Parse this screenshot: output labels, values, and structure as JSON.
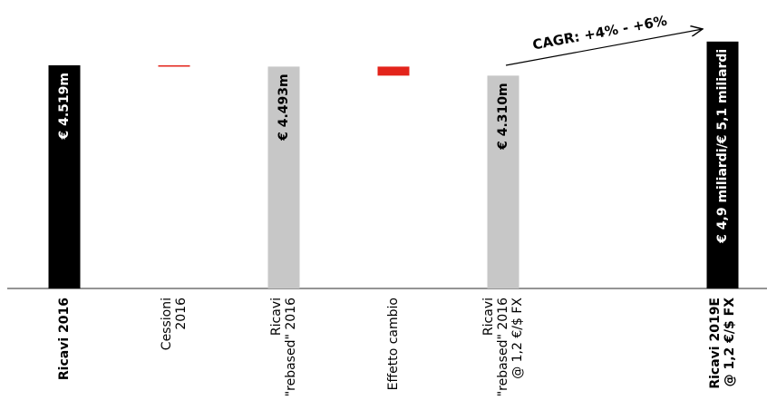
{
  "chart_data": {
    "type": "bar",
    "subtype": "waterfall",
    "ylabel": "",
    "units": "€ m",
    "categories": [
      {
        "lines": [
          "Ricavi 2016"
        ],
        "bold": true
      },
      {
        "lines": [
          "Cessioni",
          "2016"
        ],
        "bold": false
      },
      {
        "lines": [
          "Ricavi",
          "\"rebased\" 2016"
        ],
        "bold": false
      },
      {
        "lines": [
          "Effetto cambio"
        ],
        "bold": false
      },
      {
        "lines": [
          "Ricavi",
          "\"rebased\" 2016",
          "@ 1,2 €/$ FX"
        ],
        "bold": false
      },
      {
        "lines": [
          "Ricavi 2019E",
          "@ 1,2 €/$ FX"
        ],
        "bold": true
      }
    ],
    "bars": [
      {
        "kind": "total",
        "value": 4519,
        "label": "€ 4.519m",
        "color": "#000000",
        "label_color": "#ffffff"
      },
      {
        "kind": "delta",
        "value": -26,
        "label": "",
        "color": "#e3241b"
      },
      {
        "kind": "total",
        "value": 4493,
        "label": "€ 4.493m",
        "color": "#c7c7c7",
        "label_color": "#000000"
      },
      {
        "kind": "delta",
        "value": -183,
        "label": "",
        "color": "#e3241b"
      },
      {
        "kind": "total",
        "value": 4310,
        "label": "€ 4.310m",
        "color": "#c7c7c7",
        "label_color": "#000000"
      },
      {
        "kind": "total_range",
        "value": 4900,
        "value_high": 5100,
        "label": "€ 4,9 miliardi/€ 5,1 miliardi",
        "color": "#000000",
        "label_color": "#ffffff"
      }
    ],
    "annotation": {
      "text": "CAGR: +4% - +6%",
      "from_category": 4,
      "to_category": 5
    }
  }
}
